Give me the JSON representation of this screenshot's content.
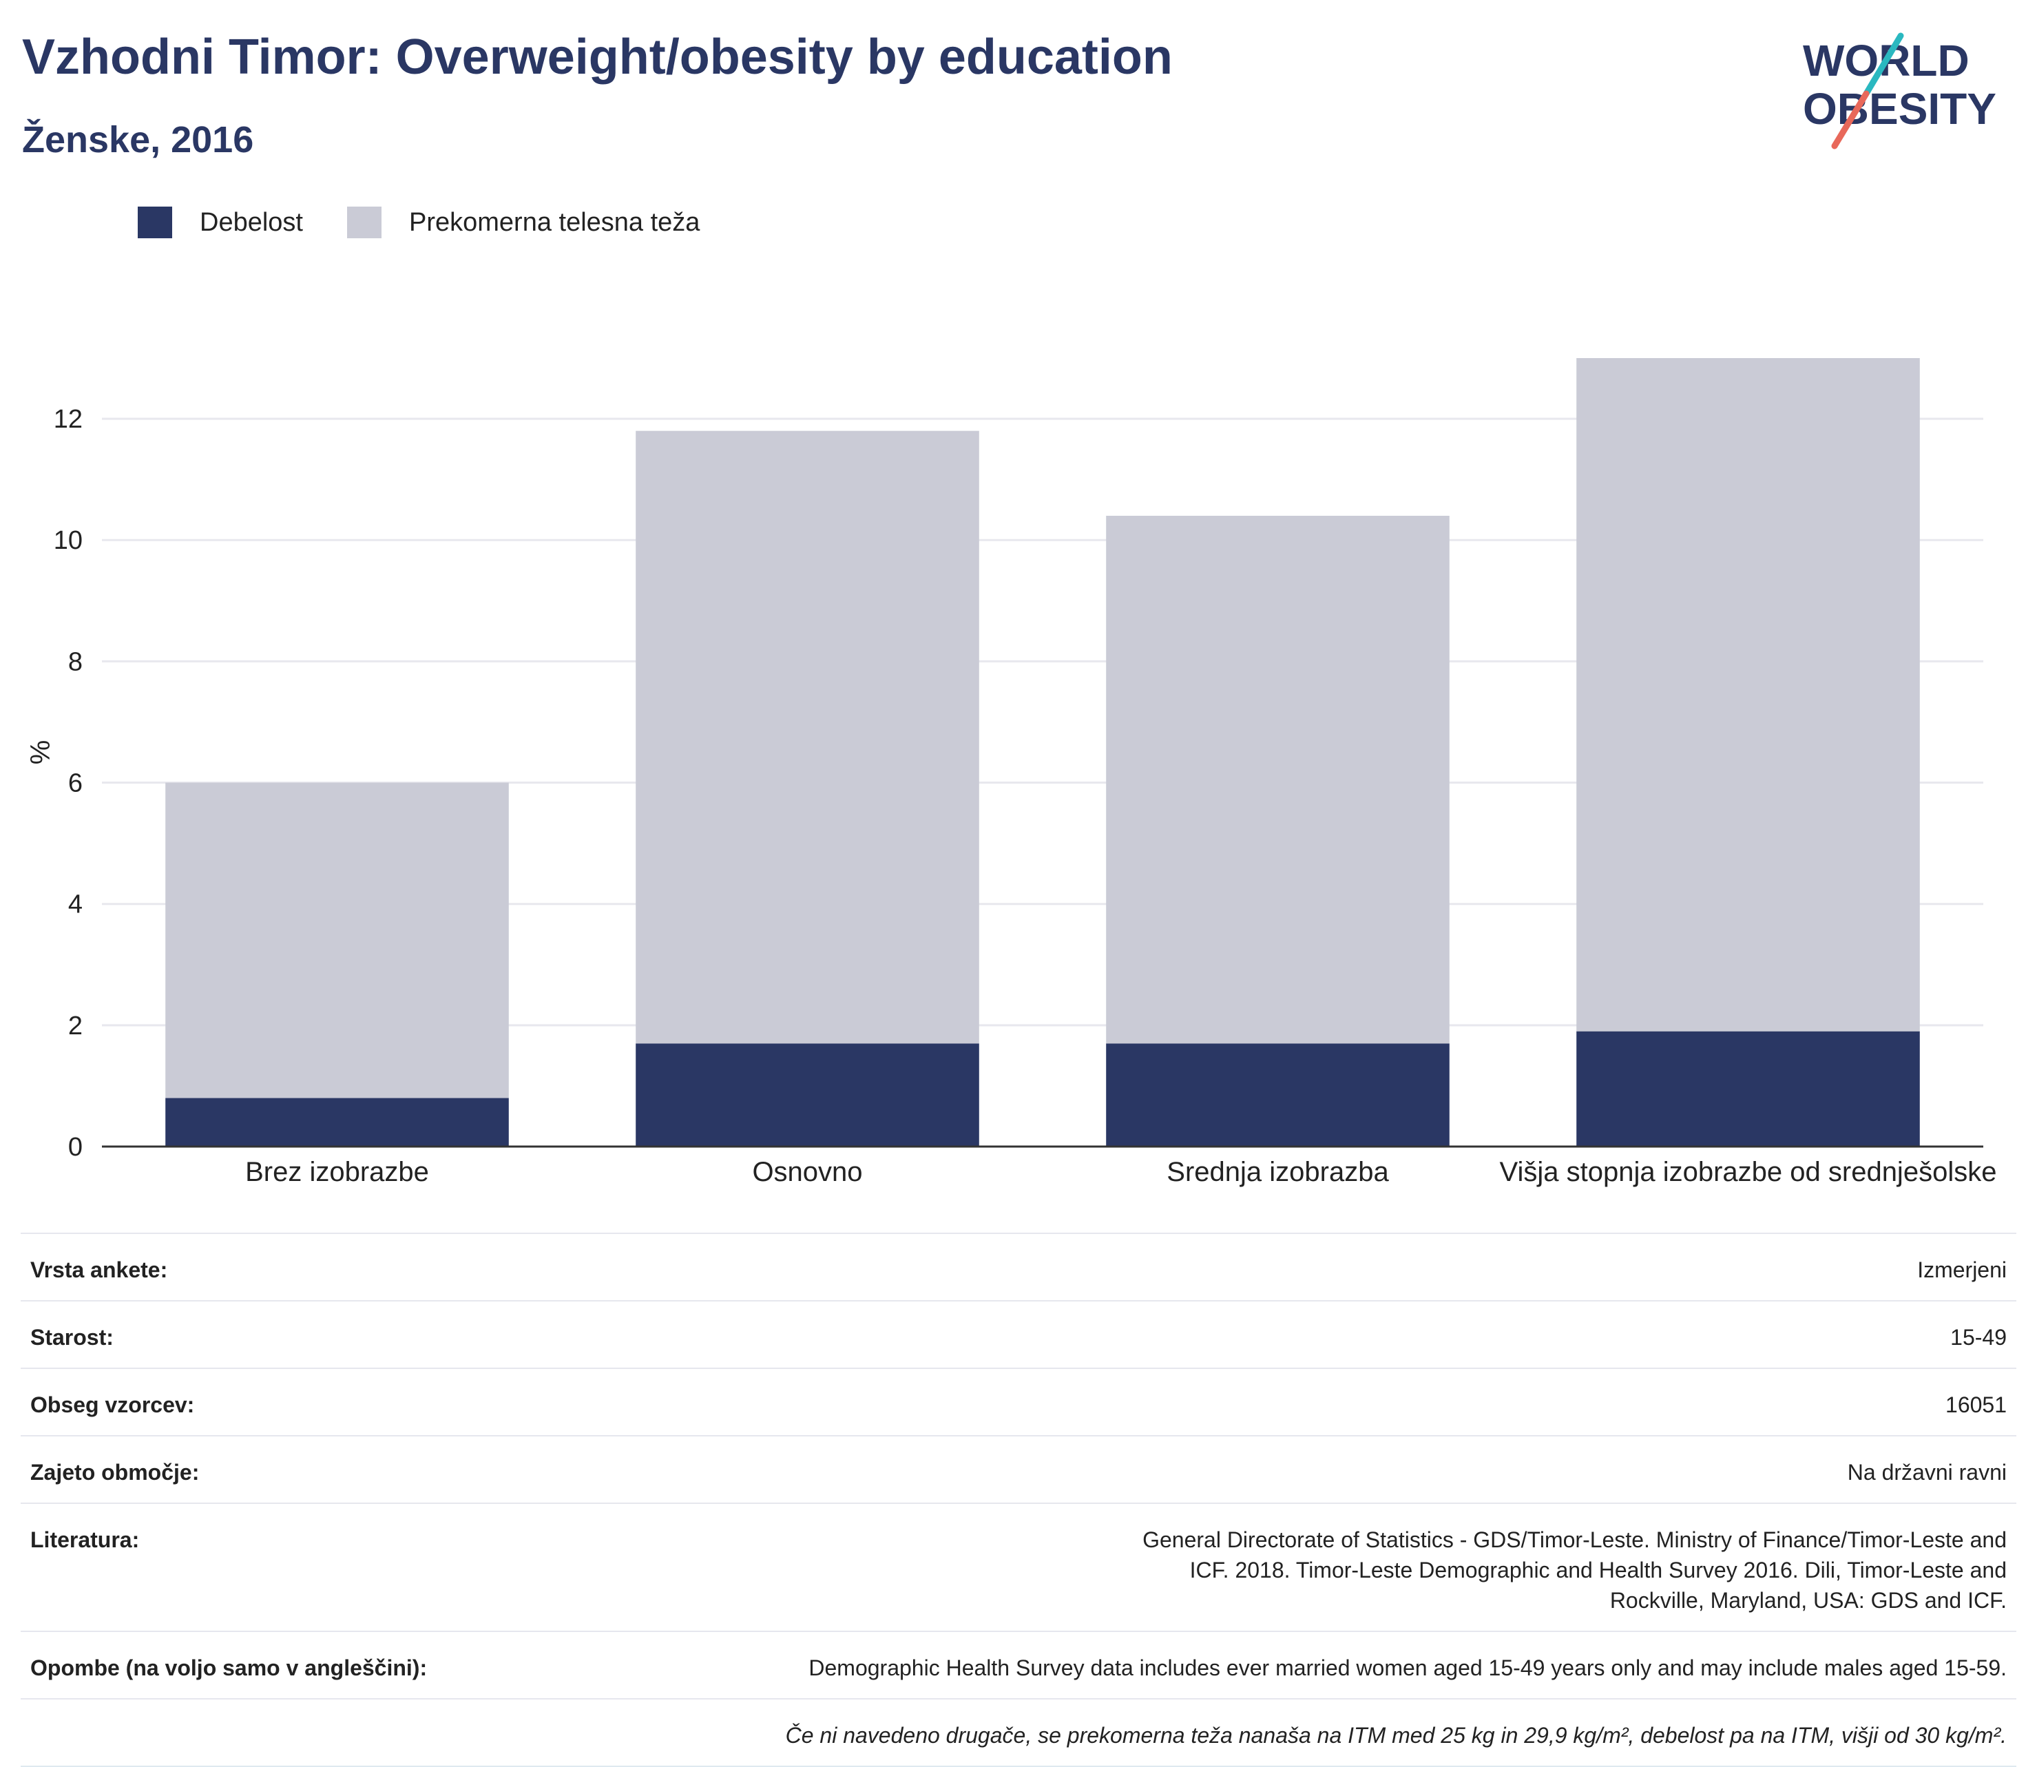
{
  "title": "Vzhodni Timor: Overweight/obesity by education",
  "subtitle": "Ženske, 2016",
  "logo": {
    "line1": "WORLD",
    "line2": "OBESITY"
  },
  "colors": {
    "obesity": "#2a3764",
    "overweight": "#cacbd6",
    "title": "#2a3764",
    "grid": "#e8e8ee"
  },
  "legend": [
    {
      "label": "Debelost",
      "color": "#2a3764"
    },
    {
      "label": "Prekomerna telesna teža",
      "color": "#cacbd6"
    }
  ],
  "chart_data": {
    "type": "bar",
    "stacked": true,
    "ylabel": "%",
    "ylim": [
      0,
      13
    ],
    "yticks": [
      0,
      2,
      4,
      6,
      8,
      10,
      12
    ],
    "grid": true,
    "legend_position": "top-left",
    "categories": [
      "Brez izobrazbe",
      "Osnovno",
      "Srednja izobrazba",
      "Višja stopnja izobrazbe od srednješolske"
    ],
    "series": [
      {
        "name": "Debelost",
        "values": [
          0.8,
          1.7,
          1.7,
          1.9
        ]
      },
      {
        "name": "Prekomerna telesna teža",
        "values": [
          5.2,
          10.1,
          8.7,
          11.1
        ]
      }
    ]
  },
  "meta": [
    {
      "label": "Vrsta ankete:",
      "value": "Izmerjeni"
    },
    {
      "label": "Starost:",
      "value": "15-49"
    },
    {
      "label": "Obseg vzorcev:",
      "value": "16051"
    },
    {
      "label": "Zajeto območje:",
      "value": "Na državni ravni"
    },
    {
      "label": "Literatura:",
      "value": "General Directorate of Statistics - GDS/Timor-Leste. Ministry of Finance/Timor-Leste and ICF. 2018. Timor-Leste Demographic and Health Survey 2016. Dili, Timor-Leste and Rockville, Maryland, USA: GDS and ICF."
    },
    {
      "label": "Opombe (na voljo samo v angleščini):",
      "value": "Demographic Health Survey data includes ever married women aged 15-49 years only and may include males aged 15-59."
    }
  ],
  "footnote": "Če ni navedeno drugače, se prekomerna teža nanaša na ITM med 25 kg in 29,9 kg/m², debelost pa na ITM, višji od 30 kg/m²."
}
